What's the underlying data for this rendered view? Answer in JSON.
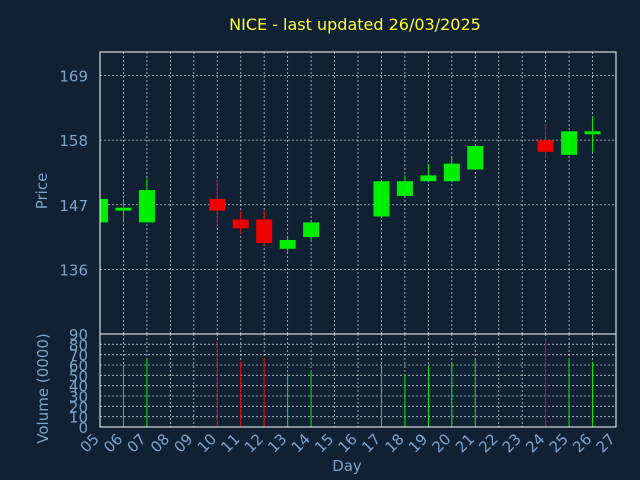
{
  "chart_data": {
    "type": "candlestick",
    "title": "NICE - last updated 26/03/2025",
    "xlabel": "Day",
    "price_panel": {
      "ylabel": "Price",
      "ylim": [
        125,
        173
      ],
      "yticks": [
        136,
        147,
        158,
        169
      ]
    },
    "volume_panel": {
      "ylabel": "Volume (0000)",
      "ylim": [
        0,
        90
      ],
      "yticks": [
        0,
        10,
        20,
        30,
        40,
        50,
        60,
        70,
        80,
        90
      ]
    },
    "xlim": [
      5,
      27
    ],
    "x_ticks": [
      "05",
      "06",
      "07",
      "08",
      "09",
      "10",
      "11",
      "12",
      "13",
      "14",
      "15",
      "16",
      "17",
      "18",
      "19",
      "20",
      "21",
      "22",
      "23",
      "24",
      "25",
      "26",
      "27"
    ],
    "grid": true,
    "candles": [
      {
        "day": 5,
        "open": 144.0,
        "high": 148.5,
        "low": 144.0,
        "close": 148.0,
        "volume": 0
      },
      {
        "day": 6,
        "open": 146.0,
        "high": 148.0,
        "low": 144.0,
        "close": 146.5,
        "volume": 60
      },
      {
        "day": 7,
        "open": 144.0,
        "high": 151.5,
        "low": 144.0,
        "close": 149.5,
        "volume": 66
      },
      {
        "day": 10,
        "open": 148.0,
        "high": 151.5,
        "low": 143.5,
        "close": 146.0,
        "volume": 83
      },
      {
        "day": 11,
        "open": 144.5,
        "high": 146.0,
        "low": 142.0,
        "close": 143.0,
        "volume": 63
      },
      {
        "day": 12,
        "open": 144.5,
        "high": 146.0,
        "low": 140.0,
        "close": 140.5,
        "volume": 67
      },
      {
        "day": 13,
        "open": 139.5,
        "high": 141.5,
        "low": 139.0,
        "close": 141.0,
        "volume": 52
      },
      {
        "day": 14,
        "open": 141.5,
        "high": 144.0,
        "low": 141.0,
        "close": 144.0,
        "volume": 55
      },
      {
        "day": 17,
        "open": 145.0,
        "high": 151.0,
        "low": 145.0,
        "close": 151.0,
        "volume": 60
      },
      {
        "day": 18,
        "open": 148.5,
        "high": 152.0,
        "low": 148.5,
        "close": 151.0,
        "volume": 51
      },
      {
        "day": 19,
        "open": 151.0,
        "high": 154.0,
        "low": 151.0,
        "close": 152.0,
        "volume": 59
      },
      {
        "day": 20,
        "open": 151.0,
        "high": 155.0,
        "low": 151.0,
        "close": 154.0,
        "volume": 63
      },
      {
        "day": 21,
        "open": 153.0,
        "high": 157.0,
        "low": 153.0,
        "close": 157.0,
        "volume": 66
      },
      {
        "day": 24,
        "open": 158.0,
        "high": 161.0,
        "low": 155.0,
        "close": 156.0,
        "volume": 86
      },
      {
        "day": 25,
        "open": 155.5,
        "high": 159.5,
        "low": 155.5,
        "close": 159.5,
        "volume": 66
      },
      {
        "day": 26,
        "open": 159.0,
        "high": 162.0,
        "low": 156.0,
        "close": 159.5,
        "volume": 63
      }
    ],
    "colors": {
      "background": "#0f2133",
      "axis": "#ffffff",
      "grid": "#ffffff",
      "text": "#7fa3c6",
      "title": "#ffff33",
      "up": "#00ee00",
      "down": "#ee0000"
    }
  }
}
